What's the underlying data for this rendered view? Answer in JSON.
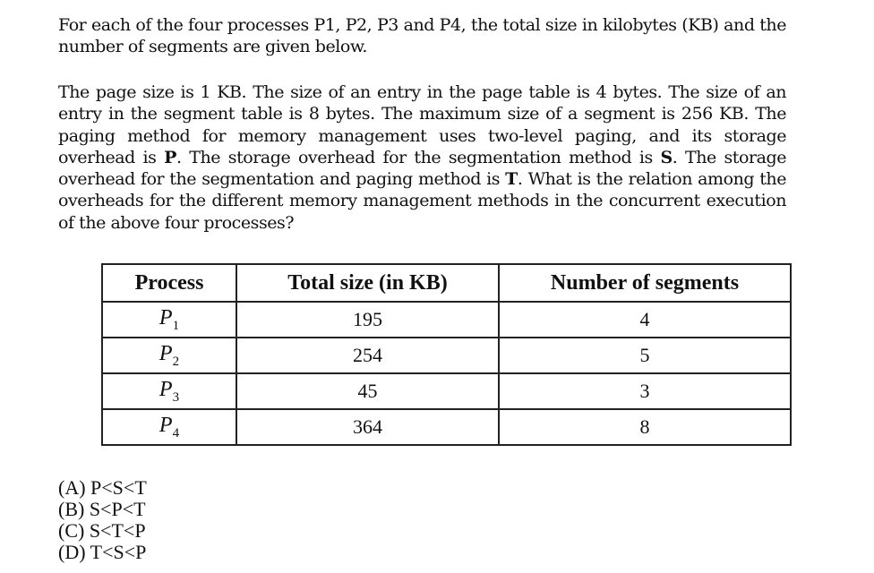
{
  "question": {
    "intro": "For each of the four processes P1, P2, P3 and P4, the total size in kilobytes (KB) and the number of segments are given below.",
    "body_parts": [
      "The page size is 1 KB. The size of an entry in the page table is 4 bytes. The size of an entry in the segment table is 8 bytes. The maximum size of a segment is 256 KB. The paging method for memory management uses two-level paging, and its storage overhead is ",
      "P",
      ". The storage overhead for the segmentation method is ",
      "S",
      ". The storage overhead for the segmentation and paging method is ",
      "T",
      ". What is the relation among the overheads for the different memory management methods in the concurrent execution of the above four processes?"
    ]
  },
  "table": {
    "headers": [
      "Process",
      "Total size (in KB)",
      "Number of segments"
    ],
    "rows": [
      {
        "process": "P",
        "sub": "1",
        "size": "195",
        "segments": "4"
      },
      {
        "process": "P",
        "sub": "2",
        "size": "254",
        "segments": "5"
      },
      {
        "process": "P",
        "sub": "3",
        "size": "45",
        "segments": "3"
      },
      {
        "process": "P",
        "sub": "4",
        "size": "364",
        "segments": "8"
      }
    ]
  },
  "options": [
    "(A) P<S<T",
    "(B) S<P<T",
    "(C) S<T<P",
    "(D) T<S<P"
  ]
}
